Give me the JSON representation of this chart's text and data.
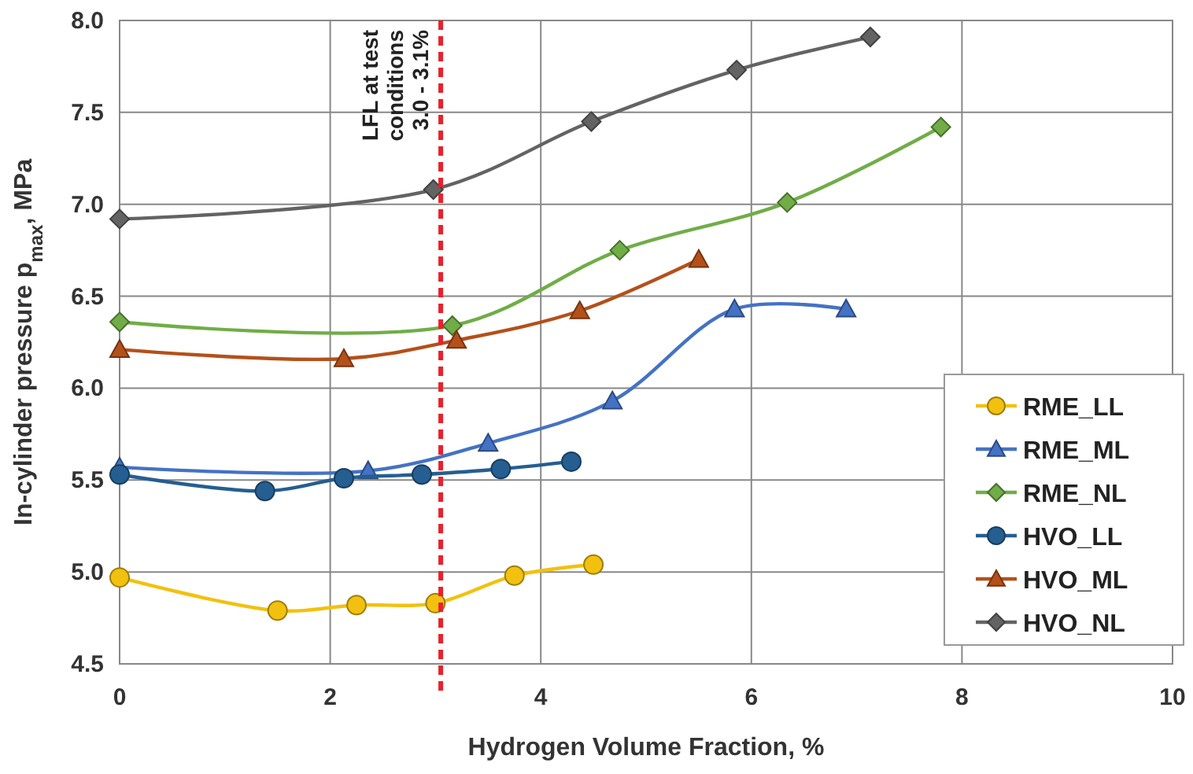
{
  "chart_data": {
    "type": "line",
    "xlabel": "Hydrogen Volume Fraction, %",
    "ylabel": "In-cylinder pressure p$_{max}$, MPa",
    "xlim": [
      0,
      10
    ],
    "xticks": [
      0,
      2,
      4,
      6,
      8,
      10
    ],
    "ylim": [
      4.5,
      8.0
    ],
    "yticks": [
      {
        "value": 4.5,
        "label": "4.5"
      },
      {
        "value": 5,
        "label": "5.0"
      },
      {
        "value": 5.5,
        "label": "5.5"
      },
      {
        "value": 6,
        "label": "6.0"
      },
      {
        "value": 6.5,
        "label": "6.5"
      },
      {
        "value": 7,
        "label": "7.0"
      },
      {
        "value": 7.5,
        "label": "7.5"
      },
      {
        "value": 8,
        "label": "8.0"
      }
    ],
    "grid": true,
    "legend": "bottom right",
    "line_style": "solid",
    "ref_lines": [
      {
        "axis": "x",
        "value": 3.05,
        "label": "LFL at test\nconditions\n3.0 - 3.1%",
        "color": "#e8212b",
        "line_style": "dashed"
      }
    ],
    "series": [
      {
        "name": "RME_LL",
        "color": "#f2c10f",
        "marker": "circle",
        "x": [
          0,
          1.5,
          2.25,
          3.0,
          3.75,
          4.5
        ],
        "values": [
          4.97,
          4.79,
          4.82,
          4.83,
          4.98,
          5.04
        ]
      },
      {
        "name": "RME_ML",
        "color": "#4472c4",
        "marker": "triangle",
        "x": [
          0,
          2.36,
          3.5,
          4.68,
          5.84,
          6.9
        ],
        "values": [
          5.57,
          5.55,
          5.7,
          5.93,
          6.43,
          6.43
        ]
      },
      {
        "name": "RME_NL",
        "color": "#70ad47",
        "marker": "diamond",
        "x": [
          0,
          3.16,
          4.75,
          6.34,
          7.8
        ],
        "values": [
          6.36,
          6.34,
          6.75,
          7.01,
          7.42
        ]
      },
      {
        "name": "HVO_LL",
        "color": "#255e91",
        "marker": "circle",
        "x": [
          0,
          1.38,
          2.13,
          2.87,
          3.62,
          4.29
        ],
        "values": [
          5.53,
          5.44,
          5.51,
          5.53,
          5.56,
          5.6
        ]
      },
      {
        "name": "HVO_ML",
        "color": "#b4501a",
        "marker": "triangle",
        "x": [
          0,
          2.13,
          3.2,
          4.37,
          5.5
        ],
        "values": [
          6.21,
          6.16,
          6.26,
          6.42,
          6.7
        ]
      },
      {
        "name": "HVO_NL",
        "color": "#636363",
        "marker": "diamond",
        "x": [
          0,
          2.98,
          4.48,
          5.86,
          7.13
        ],
        "values": [
          6.92,
          7.08,
          7.45,
          7.73,
          7.91
        ]
      }
    ]
  }
}
